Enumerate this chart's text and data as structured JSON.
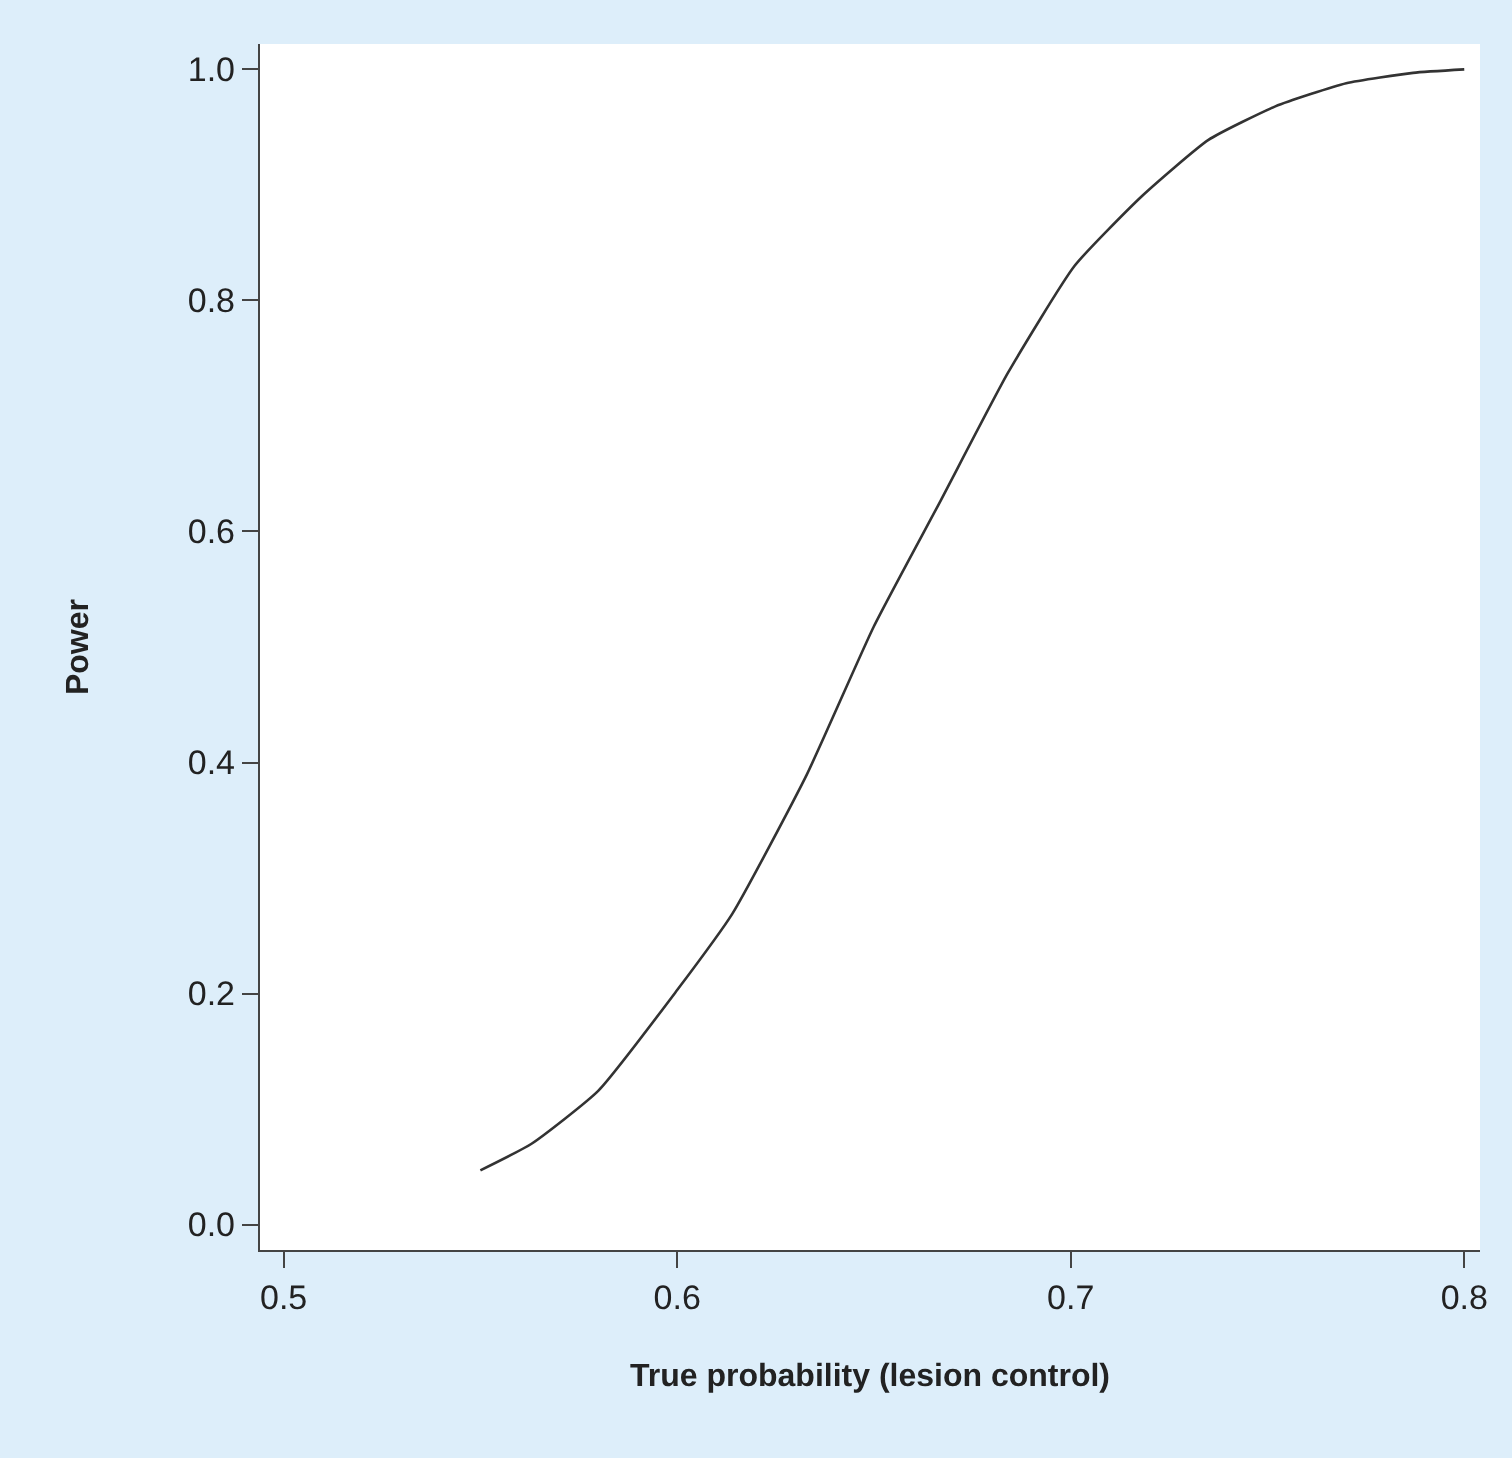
{
  "chart_data": {
    "type": "line",
    "xlabel": "True probability (lesion control)",
    "ylabel": "Power",
    "x": [
      0.55,
      0.563,
      0.58,
      0.6,
      0.614,
      0.633,
      0.65,
      0.667,
      0.684,
      0.701,
      0.718,
      0.735,
      0.752,
      0.77,
      0.787,
      0.8
    ],
    "series": [
      {
        "color": "#333333",
        "values": [
          0.047,
          0.07,
          0.116,
          0.203,
          0.269,
          0.39,
          0.518,
          0.627,
          0.737,
          0.83,
          0.89,
          0.939,
          0.968,
          0.988,
          0.997,
          1.0
        ]
      }
    ],
    "xlim": [
      0.494,
      0.804
    ],
    "ylim": [
      -0.022,
      1.022
    ],
    "xticks": [
      0.5,
      0.6,
      0.7,
      0.8
    ],
    "yticks": [
      {
        "value": 0,
        "label": "0.0"
      },
      0.2,
      0.4,
      0.6,
      0.8,
      {
        "value": 1,
        "label": "1.0"
      }
    ],
    "marker": "none",
    "line_style": "solid"
  }
}
